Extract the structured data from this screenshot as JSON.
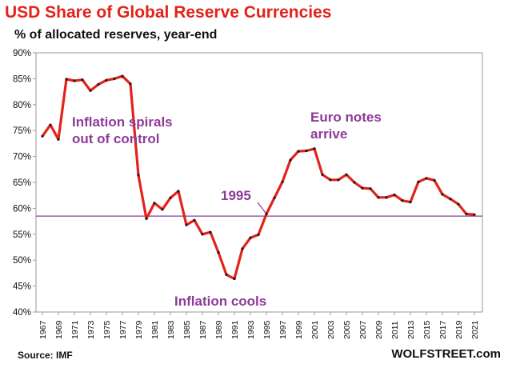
{
  "header": {
    "title": "USD Share of Global  Reserve Currencies",
    "subtitle": "% of allocated reserves, year-end"
  },
  "footer": {
    "source": "Source: IMF",
    "brand": "WOLFSTREET.com"
  },
  "colors": {
    "line": "#e32219",
    "marker": "#1a1a1a",
    "reference_line": "#8e3a98",
    "annotation": "#8e3a98",
    "title": "#e32219"
  },
  "chart_data": {
    "type": "line",
    "title": "USD Share of Global  Reserve Currencies",
    "subtitle": "% of allocated reserves, year-end",
    "xlabel": "",
    "ylabel": "",
    "xlim": [
      1967,
      2021
    ],
    "ylim": [
      40,
      90
    ],
    "grid": false,
    "legend": "none",
    "y_ticks": [
      "40%",
      "45%",
      "50%",
      "55%",
      "60%",
      "65%",
      "70%",
      "75%",
      "80%",
      "85%",
      "90%"
    ],
    "x_ticks": [
      "1967",
      "1969",
      "1971",
      "1973",
      "1975",
      "1977",
      "1979",
      "1981",
      "1983",
      "1985",
      "1987",
      "1989",
      "1991",
      "1993",
      "1995",
      "1997",
      "1999",
      "2001",
      "2003",
      "2005",
      "2007",
      "2009",
      "2011",
      "2013",
      "2015",
      "2017",
      "2019",
      "2021"
    ],
    "reference_line": {
      "y": 58.5,
      "label": "1995"
    },
    "series": [
      {
        "x": [
          1967,
          1968,
          1969,
          1970,
          1971,
          1972,
          1973,
          1974,
          1975,
          1976,
          1977,
          1978,
          1979,
          1980,
          1981,
          1982,
          1983,
          1984,
          1985,
          1986,
          1987,
          1988,
          1989,
          1990,
          1991,
          1992,
          1993,
          1994,
          1995,
          1996,
          1997,
          1998,
          1999,
          2000,
          2001,
          2002,
          2003,
          2004,
          2005,
          2006,
          2007,
          2008,
          2009,
          2010,
          2011,
          2012,
          2013,
          2014,
          2015,
          2016,
          2017,
          2018,
          2019,
          2020,
          2021
        ],
        "values": [
          73.9,
          76.1,
          73.3,
          84.9,
          84.6,
          84.8,
          82.7,
          83.9,
          84.7,
          85.0,
          85.5,
          84.0,
          66.4,
          58.0,
          61.0,
          59.8,
          62.0,
          63.3,
          56.8,
          57.7,
          55.0,
          55.4,
          51.5,
          47.2,
          46.4,
          52.2,
          54.3,
          54.9,
          58.9,
          62.0,
          65.1,
          69.3,
          71.0,
          71.1,
          71.5,
          66.5,
          65.5,
          65.5,
          66.5,
          65.0,
          63.9,
          63.8,
          62.1,
          62.1,
          62.6,
          61.5,
          61.2,
          65.1,
          65.8,
          65.4,
          62.7,
          61.8,
          60.8,
          58.9,
          58.8
        ]
      }
    ],
    "annotations": [
      {
        "lines": [
          "Inflation spirals",
          "out of control"
        ]
      },
      {
        "lines": [
          "Euro notes",
          "arrive"
        ]
      },
      {
        "lines": [
          "1995"
        ]
      },
      {
        "lines": [
          "Inflation cools"
        ]
      }
    ]
  }
}
